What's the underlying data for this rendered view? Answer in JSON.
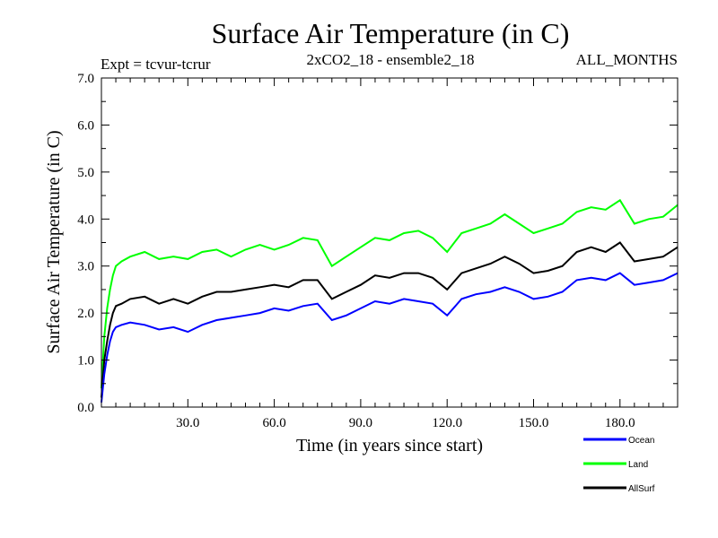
{
  "chart_data": {
    "type": "line",
    "title": "Surface Air Temperature (in C)",
    "subtitle_left": "Expt = tcvur-tcrur",
    "subtitle_center": "2xCO2_18 - ensemble2_18",
    "subtitle_right": "ALL_MONTHS",
    "xlabel": "Time (in years since start)",
    "ylabel": "Surface Air Temperature (in C)",
    "xlim": [
      0,
      200
    ],
    "ylim": [
      0.0,
      7.0
    ],
    "xticks": [
      30,
      60,
      90,
      120,
      150,
      180
    ],
    "xtick_labels": [
      "30.0",
      "60.0",
      "90.0",
      "120.0",
      "150.0",
      "180.0"
    ],
    "yticks": [
      0,
      1,
      2,
      3,
      4,
      5,
      6,
      7
    ],
    "ytick_labels": [
      "0.0",
      "1.0",
      "2.0",
      "3.0",
      "4.0",
      "5.0",
      "6.0",
      "7.0"
    ],
    "legend_position": "bottom-right",
    "grid": false,
    "series": [
      {
        "name": "Ocean",
        "color": "#0000ff",
        "x": [
          0,
          1,
          2,
          3,
          4,
          5,
          7,
          10,
          15,
          20,
          25,
          30,
          35,
          40,
          45,
          50,
          55,
          60,
          65,
          70,
          75,
          80,
          85,
          90,
          95,
          100,
          105,
          110,
          115,
          120,
          125,
          130,
          135,
          140,
          145,
          150,
          155,
          160,
          165,
          170,
          175,
          180,
          185,
          190,
          195,
          200
        ],
        "y": [
          0.1,
          0.7,
          1.1,
          1.4,
          1.6,
          1.7,
          1.75,
          1.8,
          1.75,
          1.65,
          1.7,
          1.6,
          1.75,
          1.85,
          1.9,
          1.95,
          2.0,
          2.1,
          2.05,
          2.15,
          2.2,
          1.85,
          1.95,
          2.1,
          2.25,
          2.2,
          2.3,
          2.25,
          2.2,
          1.95,
          2.3,
          2.4,
          2.45,
          2.55,
          2.45,
          2.3,
          2.35,
          2.45,
          2.7,
          2.75,
          2.7,
          2.85,
          2.6,
          2.65,
          2.7,
          2.85
        ]
      },
      {
        "name": "Land",
        "color": "#00ff00",
        "x": [
          0,
          1,
          2,
          3,
          4,
          5,
          7,
          10,
          15,
          20,
          25,
          30,
          35,
          40,
          45,
          50,
          55,
          60,
          65,
          70,
          75,
          80,
          85,
          90,
          95,
          100,
          105,
          110,
          115,
          120,
          125,
          130,
          135,
          140,
          145,
          150,
          155,
          160,
          165,
          170,
          175,
          180,
          185,
          190,
          195,
          200
        ],
        "y": [
          0.4,
          1.5,
          2.1,
          2.5,
          2.8,
          3.0,
          3.1,
          3.2,
          3.3,
          3.15,
          3.2,
          3.15,
          3.3,
          3.35,
          3.2,
          3.35,
          3.45,
          3.35,
          3.45,
          3.6,
          3.55,
          3.0,
          3.2,
          3.4,
          3.6,
          3.55,
          3.7,
          3.75,
          3.6,
          3.3,
          3.7,
          3.8,
          3.9,
          4.1,
          3.9,
          3.7,
          3.8,
          3.9,
          4.15,
          4.25,
          4.2,
          4.4,
          3.9,
          4.0,
          4.05,
          4.3
        ]
      },
      {
        "name": "AllSurf",
        "color": "#000000",
        "x": [
          0,
          1,
          2,
          3,
          4,
          5,
          7,
          10,
          15,
          20,
          25,
          30,
          35,
          40,
          45,
          50,
          55,
          60,
          65,
          70,
          75,
          80,
          85,
          90,
          95,
          100,
          105,
          110,
          115,
          120,
          125,
          130,
          135,
          140,
          145,
          150,
          155,
          160,
          165,
          170,
          175,
          180,
          185,
          190,
          195,
          200
        ],
        "y": [
          0.2,
          1.0,
          1.4,
          1.75,
          2.0,
          2.15,
          2.2,
          2.3,
          2.35,
          2.2,
          2.3,
          2.2,
          2.35,
          2.45,
          2.45,
          2.5,
          2.55,
          2.6,
          2.55,
          2.7,
          2.7,
          2.3,
          2.45,
          2.6,
          2.8,
          2.75,
          2.85,
          2.85,
          2.75,
          2.5,
          2.85,
          2.95,
          3.05,
          3.2,
          3.05,
          2.85,
          2.9,
          3.0,
          3.3,
          3.4,
          3.3,
          3.5,
          3.1,
          3.15,
          3.2,
          3.4
        ]
      }
    ]
  }
}
